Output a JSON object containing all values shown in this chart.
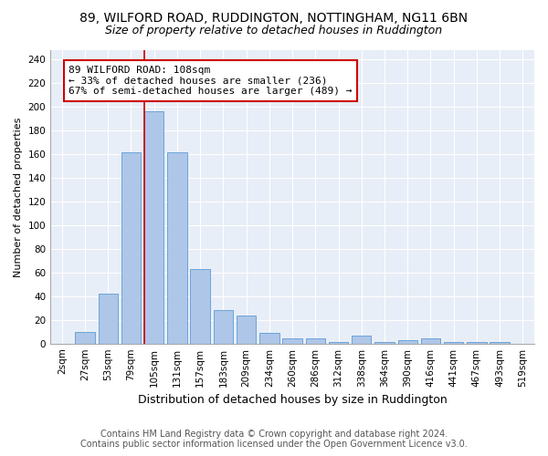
{
  "title1": "89, WILFORD ROAD, RUDDINGTON, NOTTINGHAM, NG11 6BN",
  "title2": "Size of property relative to detached houses in Ruddington",
  "xlabel": "Distribution of detached houses by size in Ruddington",
  "ylabel": "Number of detached properties",
  "footer1": "Contains HM Land Registry data © Crown copyright and database right 2024.",
  "footer2": "Contains public sector information licensed under the Open Government Licence v3.0.",
  "bar_labels": [
    "2sqm",
    "27sqm",
    "53sqm",
    "79sqm",
    "105sqm",
    "131sqm",
    "157sqm",
    "183sqm",
    "209sqm",
    "234sqm",
    "260sqm",
    "286sqm",
    "312sqm",
    "338sqm",
    "364sqm",
    "390sqm",
    "416sqm",
    "441sqm",
    "467sqm",
    "493sqm",
    "519sqm"
  ],
  "bar_values": [
    0,
    10,
    42,
    162,
    196,
    162,
    63,
    28,
    24,
    9,
    4,
    4,
    1,
    7,
    1,
    3,
    4,
    1,
    1,
    1,
    0
  ],
  "bar_color": "#aec6e8",
  "bar_edgecolor": "#5b9bd5",
  "property_label": "89 WILFORD ROAD: 108sqm",
  "annotation_line1": "← 33% of detached houses are smaller (236)",
  "annotation_line2": "67% of semi-detached houses are larger (489) →",
  "vline_bar_index": 4,
  "vline_color": "#cc0000",
  "annotation_box_color": "#ffffff",
  "annotation_box_edgecolor": "#cc0000",
  "bg_color": "#ffffff",
  "plot_bg_color": "#e8eef7",
  "ylim": [
    0,
    248
  ],
  "yticks": [
    0,
    20,
    40,
    60,
    80,
    100,
    120,
    140,
    160,
    180,
    200,
    220,
    240
  ],
  "title1_fontsize": 10,
  "title2_fontsize": 9,
  "xlabel_fontsize": 9,
  "ylabel_fontsize": 8,
  "tick_fontsize": 7.5,
  "annotation_fontsize": 8,
  "footer_fontsize": 7
}
